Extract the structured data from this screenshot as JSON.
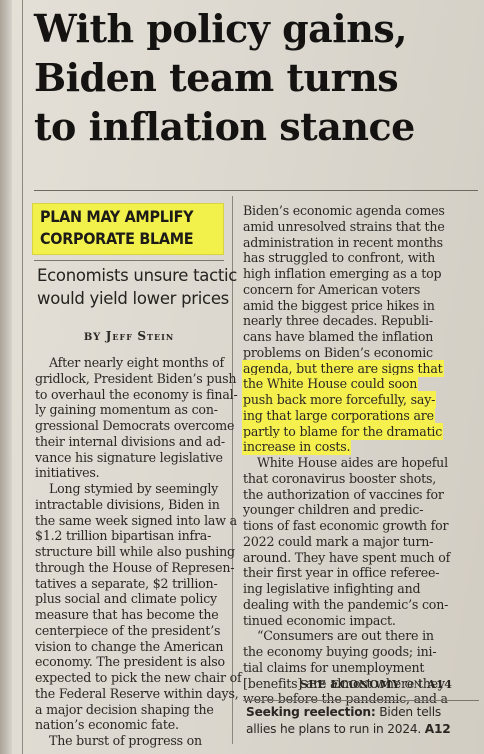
{
  "headline": {
    "lines": [
      "With policy gains,",
      "Biden team turns",
      "to inflation stance"
    ]
  },
  "kicker": {
    "lines": [
      "PLAN MAY AMPLIFY",
      "CORPORATE BLAME"
    ]
  },
  "deck": {
    "lines": [
      "Economists unsure tactic",
      "would yield lower prices"
    ]
  },
  "byline": {
    "by": "BY",
    "first": "Jeff",
    "last": "Stein"
  },
  "column_left": {
    "lines": [
      "After nearly eight months of",
      "gridlock, President Biden’s push",
      "to overhaul the economy is final-",
      "ly gaining momentum as con-",
      "gressional Democrats overcome",
      "their internal divisions and ad-",
      "vance his signature legislative",
      "initiatives.",
      "Long stymied by seemingly",
      "intractable divisions, Biden in",
      "the same week signed into law a",
      "$1.2 trillion bipartisan infra-",
      "structure bill while also pushing",
      "through the House of Represen-",
      "tatives a separate, $2 trillion-",
      "plus social and climate policy",
      "measure that has become the",
      "centerpiece of the president’s",
      "vision to change the American",
      "economy. The president is also",
      "expected to pick the new chair of",
      "the Federal Reserve within days,",
      "a major decision shaping the",
      "nation’s economic fate.",
      "The burst of progress on"
    ]
  },
  "column_right": {
    "lines": [
      "Biden’s economic agenda comes",
      "amid unresolved strains that the",
      "administration in recent months",
      "has struggled to confront, with",
      "high inflation emerging as a top",
      "concern for American voters",
      "amid the biggest price hikes in",
      "nearly three decades. Republi-",
      "cans have blamed the inflation",
      "problems on Biden’s economic",
      "agenda, but there are signs that",
      "the White House could soon",
      "push back more forcefully, say-",
      "ing that large corporations are",
      "partly to blame for the dramatic",
      "increase in costs.",
      "White House aides are hopeful",
      "that coronavirus booster shots,",
      "the authorization of vaccines for",
      "younger children and predic-",
      "tions of fast economic growth for",
      "2022 could mark a major turn-",
      "around. They have spent much of",
      "their first year in office referee-",
      "ing legislative infighting and",
      "dealing with the pandemic’s con-",
      "tinued economic impact.",
      "“Consumers are out there in",
      "the economy buying goods; ini-",
      "tial claims for unemployment",
      "[benefits] are almost where they",
      "were before the pandemic, and a"
    ]
  },
  "jump": {
    "see": "SEE",
    "section": "ECONOMY",
    "on": "ON",
    "page": "A14"
  },
  "tease": {
    "bold": "Seeking reelection:",
    "text": " Biden tells",
    "text2": "allies he plans to run in 2024.",
    "page": "A12"
  },
  "colors": {
    "highlight": "#f5f04e",
    "paper": "#dcd8cf",
    "ink": "#1e1c1a"
  }
}
